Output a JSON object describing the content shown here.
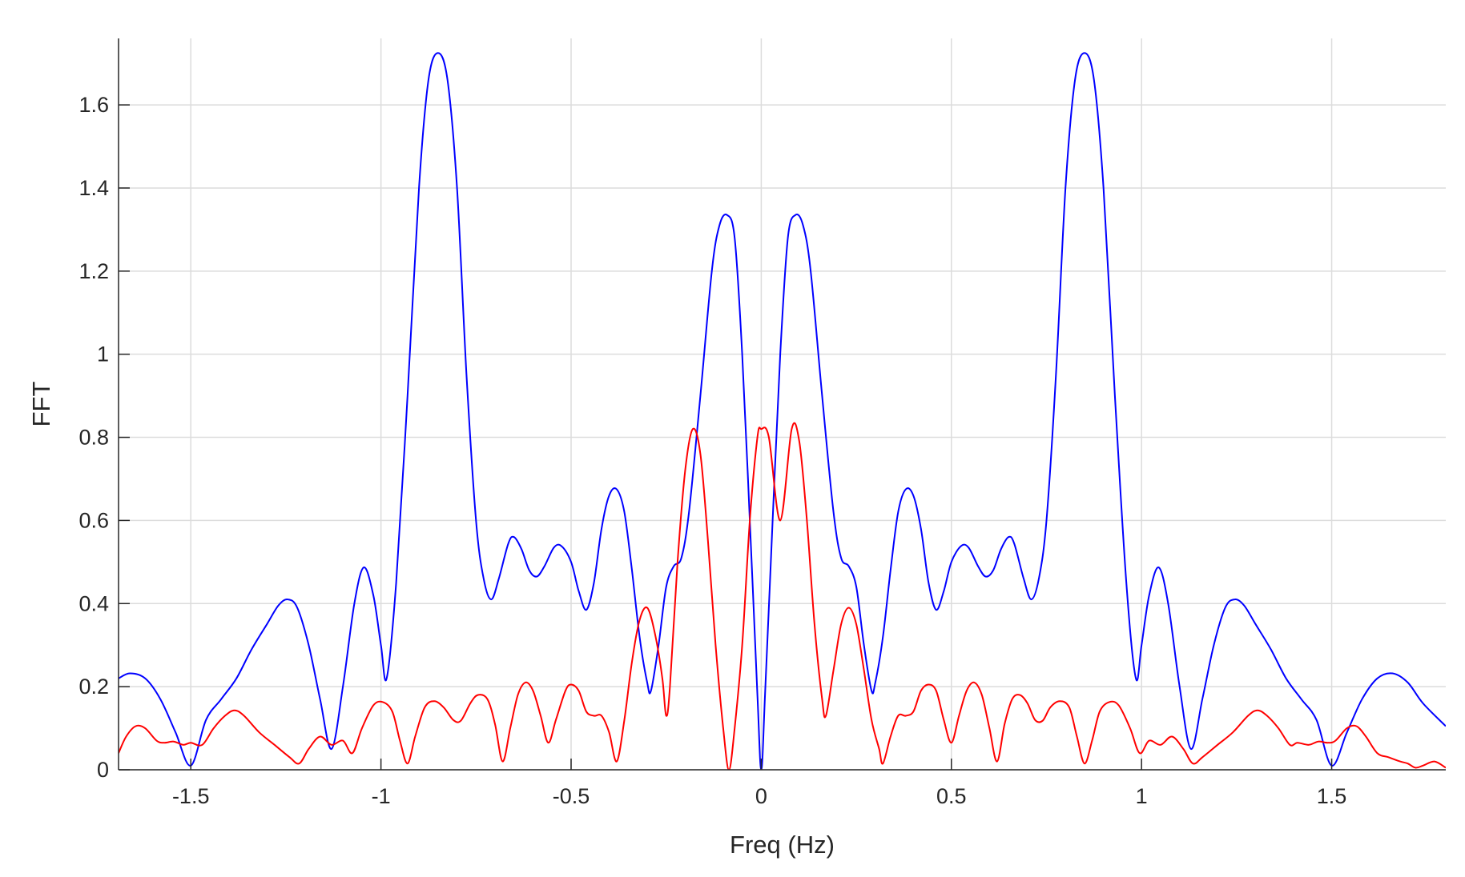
{
  "chart_data": {
    "type": "line",
    "title": "",
    "xlabel": "Freq (Hz)",
    "ylabel": "FFT",
    "xlim": [
      -1.69,
      1.8
    ],
    "ylim": [
      0,
      1.76
    ],
    "x_ticks": [
      -1.5,
      -1,
      -0.5,
      0,
      0.5,
      1,
      1.5
    ],
    "x_tick_labels": [
      "-1.5",
      "-1",
      "-0.5",
      "0",
      "0.5",
      "1",
      "1.5"
    ],
    "y_ticks": [
      0,
      0.2,
      0.4,
      0.6,
      0.8,
      1,
      1.2,
      1.4,
      1.6
    ],
    "y_tick_labels": [
      "0",
      "0.2",
      "0.4",
      "0.6",
      "0.8",
      "1",
      "1.2",
      "1.4",
      "1.6"
    ],
    "grid": true,
    "legend": "none",
    "series": [
      {
        "color": "#0000ff",
        "points": [
          [
            -1.69,
            0.22
          ],
          [
            -1.66,
            0.232
          ],
          [
            -1.62,
            0.22
          ],
          [
            -1.58,
            0.17
          ],
          [
            -1.54,
            0.09
          ],
          [
            -1.5,
            0.01
          ],
          [
            -1.46,
            0.12
          ],
          [
            -1.42,
            0.17
          ],
          [
            -1.38,
            0.22
          ],
          [
            -1.34,
            0.29
          ],
          [
            -1.3,
            0.35
          ],
          [
            -1.27,
            0.395
          ],
          [
            -1.245,
            0.41
          ],
          [
            -1.22,
            0.39
          ],
          [
            -1.19,
            0.3
          ],
          [
            -1.16,
            0.17
          ],
          [
            -1.13,
            0.05
          ],
          [
            -1.1,
            0.2
          ],
          [
            -1.07,
            0.4
          ],
          [
            -1.045,
            0.487
          ],
          [
            -1.02,
            0.42
          ],
          [
            -1.0,
            0.3
          ],
          [
            -0.985,
            0.22
          ],
          [
            -0.96,
            0.45
          ],
          [
            -0.93,
            0.9
          ],
          [
            -0.9,
            1.4
          ],
          [
            -0.875,
            1.66
          ],
          [
            -0.85,
            1.725
          ],
          [
            -0.825,
            1.66
          ],
          [
            -0.8,
            1.4
          ],
          [
            -0.775,
            0.95
          ],
          [
            -0.75,
            0.6
          ],
          [
            -0.73,
            0.46
          ],
          [
            -0.71,
            0.41
          ],
          [
            -0.69,
            0.46
          ],
          [
            -0.665,
            0.545
          ],
          [
            -0.65,
            0.56
          ],
          [
            -0.63,
            0.53
          ],
          [
            -0.61,
            0.48
          ],
          [
            -0.59,
            0.465
          ],
          [
            -0.57,
            0.49
          ],
          [
            -0.545,
            0.535
          ],
          [
            -0.525,
            0.538
          ],
          [
            -0.5,
            0.5
          ],
          [
            -0.48,
            0.43
          ],
          [
            -0.46,
            0.385
          ],
          [
            -0.44,
            0.45
          ],
          [
            -0.42,
            0.58
          ],
          [
            -0.4,
            0.66
          ],
          [
            -0.38,
            0.675
          ],
          [
            -0.36,
            0.62
          ],
          [
            -0.34,
            0.48
          ],
          [
            -0.32,
            0.32
          ],
          [
            -0.3,
            0.21
          ],
          [
            -0.29,
            0.19
          ],
          [
            -0.27,
            0.3
          ],
          [
            -0.25,
            0.44
          ],
          [
            -0.23,
            0.49
          ],
          [
            -0.21,
            0.51
          ],
          [
            -0.19,
            0.62
          ],
          [
            -0.16,
            0.9
          ],
          [
            -0.13,
            1.2
          ],
          [
            -0.11,
            1.31
          ],
          [
            -0.09,
            1.335
          ],
          [
            -0.07,
            1.28
          ],
          [
            -0.05,
            1.0
          ],
          [
            -0.03,
            0.6
          ],
          [
            -0.01,
            0.18
          ],
          [
            0.0,
            0.0
          ],
          [
            0.01,
            0.18
          ],
          [
            0.03,
            0.6
          ],
          [
            0.05,
            1.0
          ],
          [
            0.07,
            1.28
          ],
          [
            0.09,
            1.335
          ],
          [
            0.11,
            1.31
          ],
          [
            0.13,
            1.2
          ],
          [
            0.16,
            0.9
          ],
          [
            0.19,
            0.62
          ],
          [
            0.21,
            0.51
          ],
          [
            0.23,
            0.49
          ],
          [
            0.25,
            0.44
          ],
          [
            0.27,
            0.3
          ],
          [
            0.29,
            0.19
          ],
          [
            0.3,
            0.21
          ],
          [
            0.32,
            0.32
          ],
          [
            0.34,
            0.48
          ],
          [
            0.36,
            0.62
          ],
          [
            0.38,
            0.675
          ],
          [
            0.4,
            0.66
          ],
          [
            0.42,
            0.58
          ],
          [
            0.44,
            0.45
          ],
          [
            0.46,
            0.385
          ],
          [
            0.48,
            0.43
          ],
          [
            0.5,
            0.5
          ],
          [
            0.525,
            0.538
          ],
          [
            0.545,
            0.535
          ],
          [
            0.57,
            0.49
          ],
          [
            0.59,
            0.465
          ],
          [
            0.61,
            0.48
          ],
          [
            0.63,
            0.53
          ],
          [
            0.65,
            0.56
          ],
          [
            0.665,
            0.545
          ],
          [
            0.69,
            0.46
          ],
          [
            0.71,
            0.41
          ],
          [
            0.73,
            0.46
          ],
          [
            0.75,
            0.6
          ],
          [
            0.775,
            0.95
          ],
          [
            0.8,
            1.4
          ],
          [
            0.825,
            1.66
          ],
          [
            0.85,
            1.725
          ],
          [
            0.875,
            1.66
          ],
          [
            0.9,
            1.4
          ],
          [
            0.93,
            0.9
          ],
          [
            0.96,
            0.45
          ],
          [
            0.985,
            0.22
          ],
          [
            1.0,
            0.3
          ],
          [
            1.02,
            0.42
          ],
          [
            1.045,
            0.487
          ],
          [
            1.07,
            0.4
          ],
          [
            1.1,
            0.2
          ],
          [
            1.13,
            0.05
          ],
          [
            1.16,
            0.17
          ],
          [
            1.19,
            0.3
          ],
          [
            1.22,
            0.39
          ],
          [
            1.245,
            0.41
          ],
          [
            1.27,
            0.395
          ],
          [
            1.3,
            0.35
          ],
          [
            1.34,
            0.29
          ],
          [
            1.38,
            0.22
          ],
          [
            1.42,
            0.17
          ],
          [
            1.46,
            0.12
          ],
          [
            1.5,
            0.01
          ],
          [
            1.54,
            0.09
          ],
          [
            1.58,
            0.17
          ],
          [
            1.62,
            0.22
          ],
          [
            1.66,
            0.232
          ],
          [
            1.7,
            0.21
          ],
          [
            1.74,
            0.16
          ],
          [
            1.8,
            0.105
          ]
        ]
      },
      {
        "color": "#ff0000",
        "points": [
          [
            -1.69,
            0.04
          ],
          [
            -1.67,
            0.08
          ],
          [
            -1.645,
            0.105
          ],
          [
            -1.62,
            0.1
          ],
          [
            -1.59,
            0.07
          ],
          [
            -1.57,
            0.065
          ],
          [
            -1.545,
            0.068
          ],
          [
            -1.52,
            0.06
          ],
          [
            -1.5,
            0.065
          ],
          [
            -1.47,
            0.06
          ],
          [
            -1.44,
            0.1
          ],
          [
            -1.41,
            0.13
          ],
          [
            -1.385,
            0.143
          ],
          [
            -1.36,
            0.13
          ],
          [
            -1.32,
            0.09
          ],
          [
            -1.28,
            0.06
          ],
          [
            -1.24,
            0.03
          ],
          [
            -1.215,
            0.015
          ],
          [
            -1.19,
            0.05
          ],
          [
            -1.16,
            0.08
          ],
          [
            -1.13,
            0.06
          ],
          [
            -1.1,
            0.07
          ],
          [
            -1.075,
            0.04
          ],
          [
            -1.05,
            0.1
          ],
          [
            -1.02,
            0.155
          ],
          [
            -0.995,
            0.163
          ],
          [
            -0.97,
            0.14
          ],
          [
            -0.95,
            0.07
          ],
          [
            -0.93,
            0.015
          ],
          [
            -0.91,
            0.08
          ],
          [
            -0.885,
            0.15
          ],
          [
            -0.86,
            0.165
          ],
          [
            -0.835,
            0.15
          ],
          [
            -0.81,
            0.12
          ],
          [
            -0.79,
            0.118
          ],
          [
            -0.765,
            0.16
          ],
          [
            -0.745,
            0.18
          ],
          [
            -0.72,
            0.17
          ],
          [
            -0.7,
            0.11
          ],
          [
            -0.68,
            0.02
          ],
          [
            -0.66,
            0.1
          ],
          [
            -0.64,
            0.18
          ],
          [
            -0.62,
            0.21
          ],
          [
            -0.6,
            0.19
          ],
          [
            -0.58,
            0.13
          ],
          [
            -0.56,
            0.065
          ],
          [
            -0.54,
            0.12
          ],
          [
            -0.515,
            0.19
          ],
          [
            -0.5,
            0.205
          ],
          [
            -0.48,
            0.19
          ],
          [
            -0.46,
            0.14
          ],
          [
            -0.44,
            0.13
          ],
          [
            -0.42,
            0.13
          ],
          [
            -0.4,
            0.09
          ],
          [
            -0.38,
            0.02
          ],
          [
            -0.36,
            0.12
          ],
          [
            -0.34,
            0.26
          ],
          [
            -0.32,
            0.36
          ],
          [
            -0.3,
            0.39
          ],
          [
            -0.28,
            0.33
          ],
          [
            -0.26,
            0.22
          ],
          [
            -0.25,
            0.13
          ],
          [
            -0.24,
            0.2
          ],
          [
            -0.22,
            0.5
          ],
          [
            -0.2,
            0.72
          ],
          [
            -0.18,
            0.82
          ],
          [
            -0.16,
            0.76
          ],
          [
            -0.14,
            0.55
          ],
          [
            -0.12,
            0.3
          ],
          [
            -0.1,
            0.1
          ],
          [
            -0.085,
            0.0
          ],
          [
            -0.07,
            0.1
          ],
          [
            -0.05,
            0.3
          ],
          [
            -0.03,
            0.6
          ],
          [
            -0.01,
            0.8
          ],
          [
            0.0,
            0.82
          ],
          [
            0.02,
            0.8
          ],
          [
            0.05,
            0.6
          ],
          [
            0.08,
            0.82
          ],
          [
            0.1,
            0.79
          ],
          [
            0.12,
            0.6
          ],
          [
            0.14,
            0.35
          ],
          [
            0.16,
            0.17
          ],
          [
            0.17,
            0.13
          ],
          [
            0.19,
            0.24
          ],
          [
            0.21,
            0.35
          ],
          [
            0.23,
            0.39
          ],
          [
            0.25,
            0.35
          ],
          [
            0.27,
            0.24
          ],
          [
            0.29,
            0.12
          ],
          [
            0.31,
            0.05
          ],
          [
            0.32,
            0.015
          ],
          [
            0.34,
            0.08
          ],
          [
            0.36,
            0.13
          ],
          [
            0.38,
            0.13
          ],
          [
            0.4,
            0.14
          ],
          [
            0.42,
            0.19
          ],
          [
            0.44,
            0.205
          ],
          [
            0.46,
            0.19
          ],
          [
            0.48,
            0.12
          ],
          [
            0.5,
            0.065
          ],
          [
            0.52,
            0.13
          ],
          [
            0.54,
            0.19
          ],
          [
            0.56,
            0.21
          ],
          [
            0.58,
            0.18
          ],
          [
            0.6,
            0.1
          ],
          [
            0.62,
            0.02
          ],
          [
            0.64,
            0.11
          ],
          [
            0.66,
            0.17
          ],
          [
            0.68,
            0.18
          ],
          [
            0.7,
            0.16
          ],
          [
            0.72,
            0.12
          ],
          [
            0.74,
            0.118
          ],
          [
            0.76,
            0.15
          ],
          [
            0.785,
            0.165
          ],
          [
            0.81,
            0.15
          ],
          [
            0.83,
            0.08
          ],
          [
            0.85,
            0.015
          ],
          [
            0.87,
            0.07
          ],
          [
            0.89,
            0.14
          ],
          [
            0.915,
            0.163
          ],
          [
            0.94,
            0.155
          ],
          [
            0.97,
            0.1
          ],
          [
            0.995,
            0.04
          ],
          [
            1.02,
            0.07
          ],
          [
            1.05,
            0.06
          ],
          [
            1.08,
            0.08
          ],
          [
            1.11,
            0.05
          ],
          [
            1.135,
            0.015
          ],
          [
            1.16,
            0.03
          ],
          [
            1.2,
            0.06
          ],
          [
            1.24,
            0.09
          ],
          [
            1.28,
            0.13
          ],
          [
            1.305,
            0.143
          ],
          [
            1.33,
            0.13
          ],
          [
            1.36,
            0.1
          ],
          [
            1.39,
            0.06
          ],
          [
            1.41,
            0.065
          ],
          [
            1.44,
            0.06
          ],
          [
            1.465,
            0.068
          ],
          [
            1.49,
            0.065
          ],
          [
            1.51,
            0.07
          ],
          [
            1.54,
            0.1
          ],
          [
            1.565,
            0.105
          ],
          [
            1.59,
            0.08
          ],
          [
            1.62,
            0.04
          ],
          [
            1.65,
            0.03
          ],
          [
            1.68,
            0.02
          ],
          [
            1.7,
            0.015
          ],
          [
            1.72,
            0.005
          ],
          [
            1.74,
            0.01
          ],
          [
            1.77,
            0.02
          ],
          [
            1.8,
            0.005
          ]
        ]
      }
    ]
  }
}
